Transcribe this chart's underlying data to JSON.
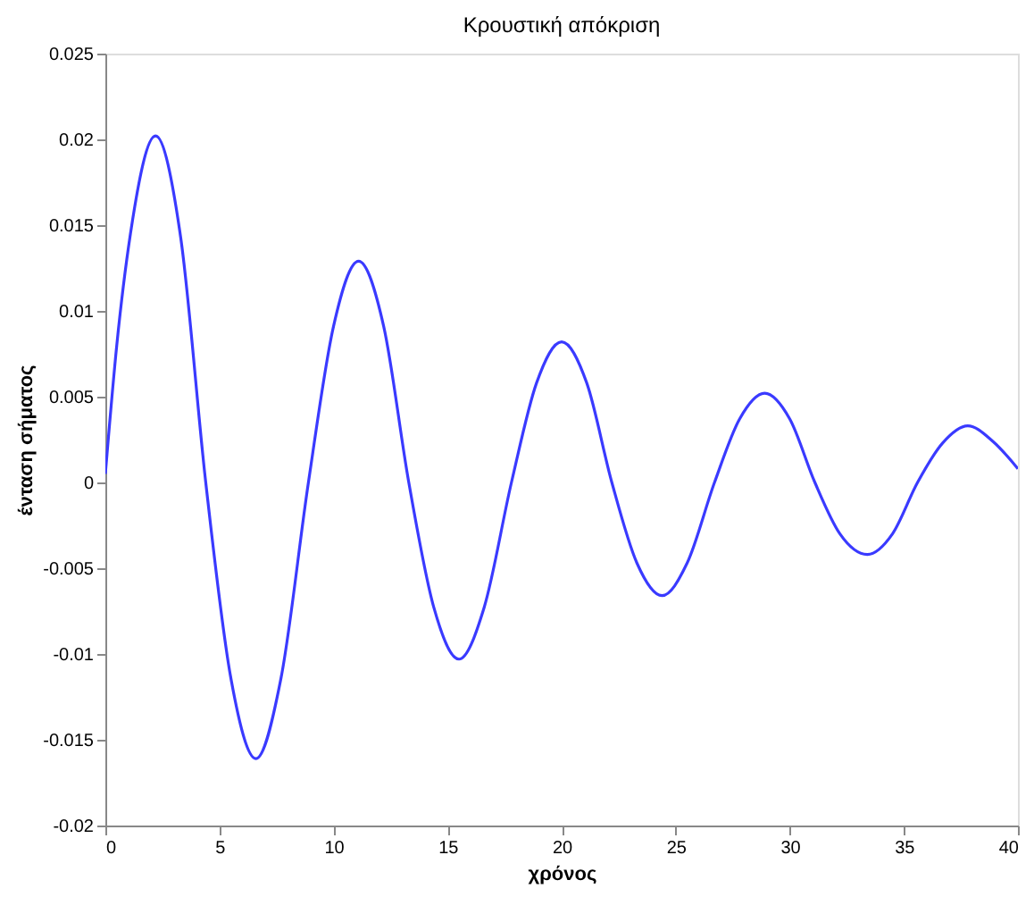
{
  "chart_data": {
    "type": "line",
    "title": "Κρουστική απόκριση",
    "xlabel": "χρόνος",
    "ylabel": "ένταση σήματος",
    "xlim": [
      0,
      40
    ],
    "xticks": [
      0,
      5,
      10,
      15,
      20,
      25,
      30,
      35,
      40
    ],
    "ylim": [
      -0.02,
      0.025
    ],
    "yticks": [
      -0.02,
      -0.015,
      -0.01,
      -0.005,
      0,
      0.005,
      0.01,
      0.015,
      0.02,
      0.025
    ],
    "grid": false,
    "marker": "none",
    "line_style": "solid",
    "series": [
      {
        "color": "#3a3aff",
        "x": [
          0,
          0.5,
          1.1,
          2.2,
          3.3,
          4.4,
          5.5,
          6.6,
          7.7,
          8.9,
          10.0,
          11.1,
          12.2,
          13.3,
          14.4,
          15.5,
          16.6,
          17.8,
          18.9,
          20.0,
          21.1,
          22.2,
          23.3,
          24.4,
          25.5,
          26.7,
          27.8,
          28.9,
          30.0,
          31.1,
          32.2,
          33.4,
          34.5,
          35.6,
          36.7,
          37.8,
          38.9,
          40
        ],
        "values": [
          0.0005,
          0.008,
          0.0145,
          0.0202,
          0.0143,
          0.0,
          -0.0114,
          -0.0161,
          -0.0114,
          0.0,
          0.0091,
          0.0129,
          0.0091,
          0.0,
          -0.0073,
          -0.0103,
          -0.0073,
          0.0,
          0.0058,
          0.0082,
          0.0058,
          0.0,
          -0.0047,
          -0.0066,
          -0.0047,
          0.0,
          0.0037,
          0.0052,
          0.0037,
          0.0,
          -0.003,
          -0.0042,
          -0.003,
          0.0,
          0.0023,
          0.0033,
          0.0024,
          0.0008
        ]
      }
    ]
  }
}
